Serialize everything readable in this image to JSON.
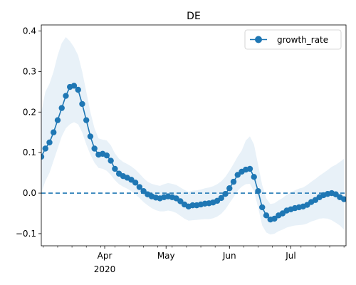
{
  "chart_data": {
    "type": "line",
    "title": "DE",
    "xlabel": "",
    "ylabel": "",
    "xlim": [
      "2020-03-01",
      "2020-07-28"
    ],
    "ylim": [
      -0.13,
      0.415
    ],
    "xticks": [
      {
        "date": "2020-04-01",
        "label": "Apr",
        "sublabel": "2020"
      },
      {
        "date": "2020-05-01",
        "label": "May",
        "sublabel": ""
      },
      {
        "date": "2020-06-01",
        "label": "Jun",
        "sublabel": ""
      },
      {
        "date": "2020-07-01",
        "label": "Jul",
        "sublabel": ""
      }
    ],
    "yticks": [
      -0.1,
      0.0,
      0.1,
      0.2,
      0.3,
      0.4
    ],
    "ytick_labels": [
      "−0.1",
      "0.0",
      "0.1",
      "0.2",
      "0.3",
      "0.4"
    ],
    "reference_line": {
      "y": 0.0,
      "style": "dashed",
      "color": "#1f77b4"
    },
    "legend": {
      "position": "top-right",
      "entries": [
        "growth_rate"
      ]
    },
    "grid": false,
    "colors": {
      "series": "#1f77b4",
      "band": "#dce9f5"
    },
    "series": [
      {
        "name": "growth_rate",
        "marker": "circle",
        "x": [
          "2020-03-01",
          "2020-03-03",
          "2020-03-05",
          "2020-03-07",
          "2020-03-09",
          "2020-03-11",
          "2020-03-13",
          "2020-03-15",
          "2020-03-17",
          "2020-03-19",
          "2020-03-21",
          "2020-03-23",
          "2020-03-25",
          "2020-03-27",
          "2020-03-29",
          "2020-03-31",
          "2020-04-02",
          "2020-04-04",
          "2020-04-06",
          "2020-04-08",
          "2020-04-10",
          "2020-04-12",
          "2020-04-14",
          "2020-04-16",
          "2020-04-18",
          "2020-04-20",
          "2020-04-22",
          "2020-04-24",
          "2020-04-26",
          "2020-04-28",
          "2020-04-30",
          "2020-05-02",
          "2020-05-04",
          "2020-05-06",
          "2020-05-08",
          "2020-05-10",
          "2020-05-12",
          "2020-05-14",
          "2020-05-16",
          "2020-05-18",
          "2020-05-20",
          "2020-05-22",
          "2020-05-24",
          "2020-05-26",
          "2020-05-28",
          "2020-05-30",
          "2020-06-01",
          "2020-06-03",
          "2020-06-05",
          "2020-06-07",
          "2020-06-09",
          "2020-06-11",
          "2020-06-13",
          "2020-06-15",
          "2020-06-17",
          "2020-06-19",
          "2020-06-21",
          "2020-06-23",
          "2020-06-25",
          "2020-06-27",
          "2020-06-29",
          "2020-07-01",
          "2020-07-03",
          "2020-07-05",
          "2020-07-07",
          "2020-07-09",
          "2020-07-11",
          "2020-07-13",
          "2020-07-15",
          "2020-07-17",
          "2020-07-19",
          "2020-07-21",
          "2020-07-23",
          "2020-07-25",
          "2020-07-27"
        ],
        "values": [
          0.09,
          0.11,
          0.125,
          0.15,
          0.18,
          0.21,
          0.24,
          0.262,
          0.265,
          0.255,
          0.22,
          0.18,
          0.14,
          0.11,
          0.095,
          0.097,
          0.093,
          0.08,
          0.06,
          0.048,
          0.042,
          0.038,
          0.033,
          0.026,
          0.015,
          0.005,
          -0.003,
          -0.008,
          -0.011,
          -0.013,
          -0.01,
          -0.008,
          -0.01,
          -0.013,
          -0.02,
          -0.028,
          -0.033,
          -0.03,
          -0.03,
          -0.028,
          -0.026,
          -0.025,
          -0.023,
          -0.019,
          -0.012,
          -0.002,
          0.012,
          0.028,
          0.045,
          0.053,
          0.058,
          0.06,
          0.04,
          0.005,
          -0.035,
          -0.055,
          -0.065,
          -0.063,
          -0.055,
          -0.05,
          -0.043,
          -0.04,
          -0.037,
          -0.035,
          -0.033,
          -0.029,
          -0.022,
          -0.017,
          -0.01,
          -0.005,
          -0.002,
          0.0,
          -0.003,
          -0.01,
          -0.015
        ],
        "lower": [
          0.0,
          0.03,
          0.05,
          0.08,
          0.11,
          0.14,
          0.16,
          0.17,
          0.175,
          0.17,
          0.15,
          0.12,
          0.095,
          0.075,
          0.062,
          0.06,
          0.055,
          0.045,
          0.032,
          0.022,
          0.016,
          0.011,
          0.005,
          -0.003,
          -0.012,
          -0.022,
          -0.03,
          -0.037,
          -0.042,
          -0.045,
          -0.045,
          -0.043,
          -0.045,
          -0.049,
          -0.056,
          -0.063,
          -0.068,
          -0.067,
          -0.066,
          -0.065,
          -0.064,
          -0.064,
          -0.062,
          -0.058,
          -0.051,
          -0.04,
          -0.025,
          -0.01,
          0.006,
          0.016,
          0.022,
          0.023,
          0.005,
          -0.035,
          -0.08,
          -0.097,
          -0.102,
          -0.1,
          -0.094,
          -0.09,
          -0.085,
          -0.082,
          -0.08,
          -0.079,
          -0.078,
          -0.075,
          -0.07,
          -0.067,
          -0.063,
          -0.062,
          -0.063,
          -0.067,
          -0.073,
          -0.08,
          -0.09
        ],
        "upper": [
          0.2,
          0.25,
          0.27,
          0.3,
          0.34,
          0.37,
          0.385,
          0.375,
          0.36,
          0.34,
          0.3,
          0.25,
          0.2,
          0.16,
          0.135,
          0.132,
          0.13,
          0.118,
          0.098,
          0.085,
          0.077,
          0.072,
          0.066,
          0.058,
          0.048,
          0.037,
          0.028,
          0.023,
          0.02,
          0.018,
          0.022,
          0.025,
          0.023,
          0.02,
          0.014,
          0.008,
          0.003,
          0.006,
          0.007,
          0.009,
          0.012,
          0.014,
          0.017,
          0.022,
          0.029,
          0.04,
          0.055,
          0.072,
          0.09,
          0.105,
          0.13,
          0.14,
          0.12,
          0.07,
          0.02,
          -0.013,
          -0.027,
          -0.025,
          -0.018,
          -0.012,
          -0.004,
          0.002,
          0.007,
          0.011,
          0.014,
          0.02,
          0.028,
          0.035,
          0.043,
          0.05,
          0.057,
          0.065,
          0.07,
          0.077,
          0.085
        ]
      }
    ]
  }
}
